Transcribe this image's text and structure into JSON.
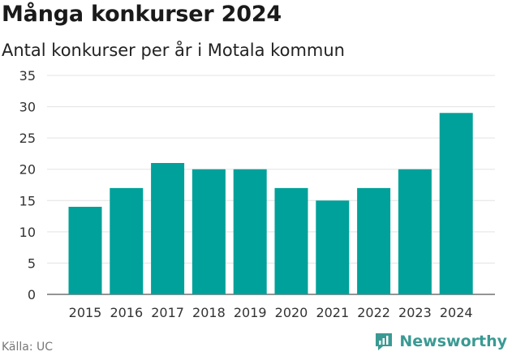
{
  "header": {
    "title": "Många konkurser 2024",
    "subtitle": "Antal konkurser per år i Motala kommun"
  },
  "footer": {
    "source": "Källa: UC",
    "brand": "Newsworthy"
  },
  "chart_data": {
    "type": "bar",
    "categories": [
      "2015",
      "2016",
      "2017",
      "2018",
      "2019",
      "2020",
      "2021",
      "2022",
      "2023",
      "2024"
    ],
    "values": [
      14,
      17,
      21,
      20,
      20,
      17,
      15,
      17,
      20,
      29
    ],
    "ylim": [
      0,
      35
    ],
    "yticks": [
      0,
      5,
      10,
      15,
      20,
      25,
      30,
      35
    ],
    "grid": true,
    "bar_color": "#00a19a",
    "grid_color": "#e3e3e3"
  }
}
